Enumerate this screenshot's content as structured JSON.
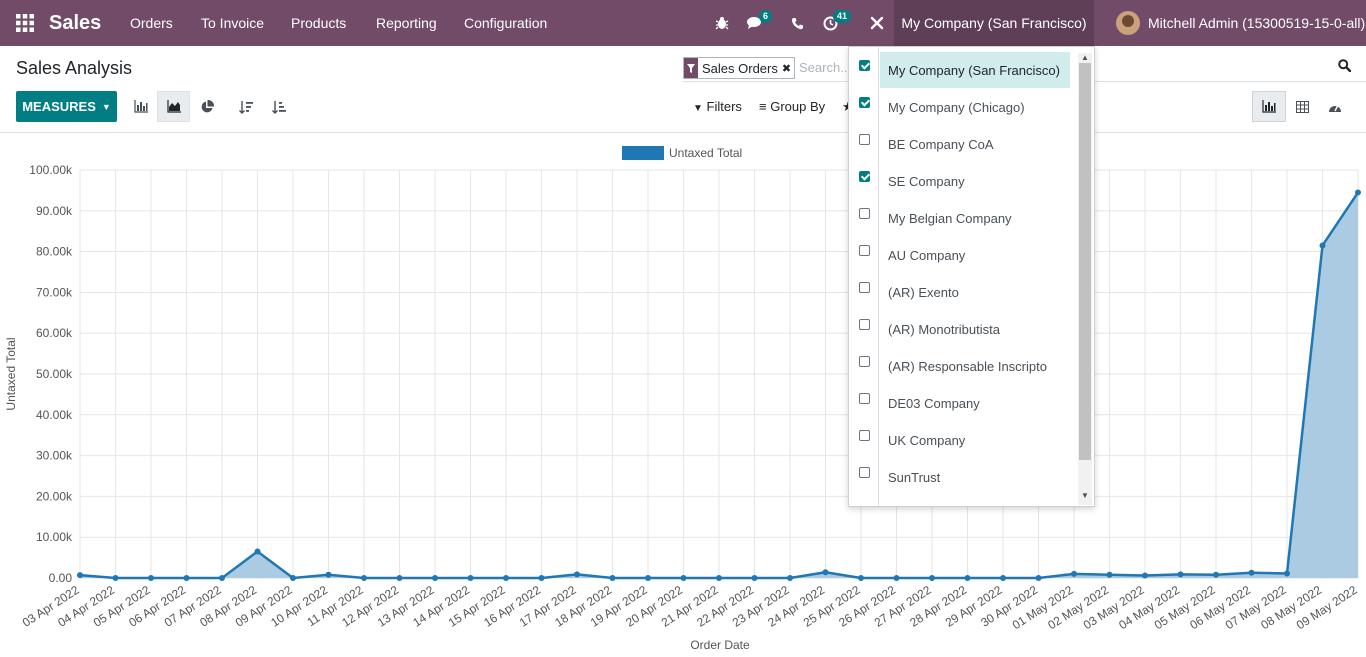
{
  "navbar": {
    "app_name": "Sales",
    "menu": [
      "Orders",
      "To Invoice",
      "Products",
      "Reporting",
      "Configuration"
    ],
    "messages_count": "6",
    "activities_count": "41",
    "current_company": "My Company (San Francisco)",
    "user_name": "Mitchell Admin (15300519-15-0-all)",
    "icons": {
      "apps": "grid-icon",
      "debug": "bug-icon",
      "messages": "chat-icon",
      "phone": "phone-icon",
      "activities": "clock-icon",
      "tools": "tools-icon"
    }
  },
  "control_panel": {
    "title": "Sales Analysis",
    "search_facet": "Sales Orders",
    "search_placeholder": "Search...",
    "measures_label": "MEASURES",
    "filters_label": "Filters",
    "groupby_label": "Group By"
  },
  "company_dropdown": {
    "items": [
      {
        "name": "My Company (San Francisco)",
        "checked": true,
        "active": true
      },
      {
        "name": "My Company (Chicago)",
        "checked": true,
        "active": false
      },
      {
        "name": "BE Company CoA",
        "checked": false,
        "active": false
      },
      {
        "name": "SE Company",
        "checked": true,
        "active": false
      },
      {
        "name": "My Belgian Company",
        "checked": false,
        "active": false
      },
      {
        "name": "AU Company",
        "checked": false,
        "active": false
      },
      {
        "name": "(AR) Exento",
        "checked": false,
        "active": false
      },
      {
        "name": "(AR) Monotributista",
        "checked": false,
        "active": false
      },
      {
        "name": "(AR) Responsable Inscripto",
        "checked": false,
        "active": false
      },
      {
        "name": "DE03 Company",
        "checked": false,
        "active": false
      },
      {
        "name": "UK Company",
        "checked": false,
        "active": false
      },
      {
        "name": "SunTrust",
        "checked": false,
        "active": false
      }
    ]
  },
  "colors": {
    "navbar": "#714B67",
    "primary": "#017E84",
    "series_line": "#1F77B4",
    "series_fill": "#A6C8E2"
  },
  "chart_data": {
    "type": "area",
    "title": "",
    "legend": [
      "Untaxed Total"
    ],
    "legend_position": "top-center",
    "xlabel": "Order Date",
    "ylabel": "Untaxed Total",
    "ylim": [
      0,
      100000
    ],
    "y_ticks": [
      "0.00",
      "10.00k",
      "20.00k",
      "30.00k",
      "40.00k",
      "50.00k",
      "60.00k",
      "70.00k",
      "80.00k",
      "90.00k",
      "100.00k"
    ],
    "grid": true,
    "categories": [
      "03 Apr 2022",
      "04 Apr 2022",
      "05 Apr 2022",
      "06 Apr 2022",
      "07 Apr 2022",
      "08 Apr 2022",
      "09 Apr 2022",
      "10 Apr 2022",
      "11 Apr 2022",
      "12 Apr 2022",
      "13 Apr 2022",
      "14 Apr 2022",
      "15 Apr 2022",
      "16 Apr 2022",
      "17 Apr 2022",
      "18 Apr 2022",
      "19 Apr 2022",
      "20 Apr 2022",
      "21 Apr 2022",
      "22 Apr 2022",
      "23 Apr 2022",
      "24 Apr 2022",
      "25 Apr 2022",
      "26 Apr 2022",
      "27 Apr 2022",
      "28 Apr 2022",
      "29 Apr 2022",
      "30 Apr 2022",
      "01 May 2022",
      "02 May 2022",
      "03 May 2022",
      "04 May 2022",
      "05 May 2022",
      "06 May 2022",
      "07 May 2022",
      "08 May 2022",
      "09 May 2022"
    ],
    "series": [
      {
        "name": "Untaxed Total",
        "values": [
          700,
          0,
          0,
          0,
          0,
          6500,
          0,
          800,
          0,
          0,
          0,
          0,
          0,
          0,
          900,
          0,
          0,
          0,
          0,
          0,
          0,
          1400,
          0,
          0,
          0,
          0,
          0,
          0,
          1000,
          800,
          600,
          900,
          800,
          1300,
          1100,
          81500,
          94500
        ]
      }
    ]
  }
}
